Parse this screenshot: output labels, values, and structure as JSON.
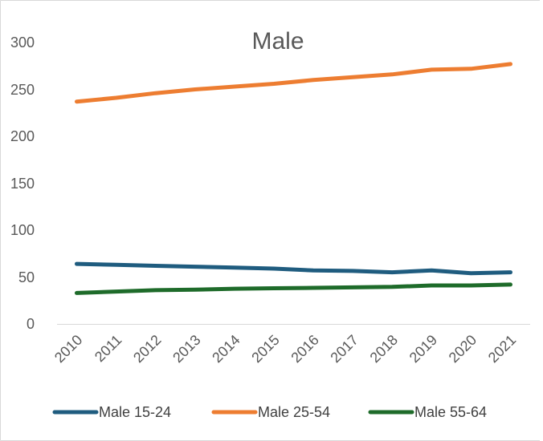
{
  "chart_data": {
    "type": "line",
    "title": "Male",
    "xlabel": "",
    "ylabel": "",
    "categories": [
      "2010",
      "2011",
      "2012",
      "2013",
      "2014",
      "2015",
      "2016",
      "2017",
      "2018",
      "2019",
      "2020",
      "2021"
    ],
    "yticks": [
      "0",
      "50",
      "100",
      "150",
      "200",
      "250",
      "300"
    ],
    "ylim": [
      0,
      300
    ],
    "grid": false,
    "legend_position": "bottom",
    "series": [
      {
        "name": "Male 15-24",
        "color": "#1f5c7f",
        "values": [
          64,
          63,
          62,
          61,
          60,
          59,
          57,
          56.5,
          55,
          57,
          54,
          55
        ]
      },
      {
        "name": "Male 25-54",
        "color": "#ed7d31",
        "values": [
          237,
          241,
          246,
          250,
          253,
          256,
          260,
          263,
          266,
          271,
          272,
          277
        ]
      },
      {
        "name": "Male 55-64",
        "color": "#1e6b2a",
        "values": [
          33,
          34.5,
          36,
          36.5,
          37.5,
          38,
          38.5,
          39,
          39.5,
          41,
          41,
          42
        ]
      }
    ]
  }
}
